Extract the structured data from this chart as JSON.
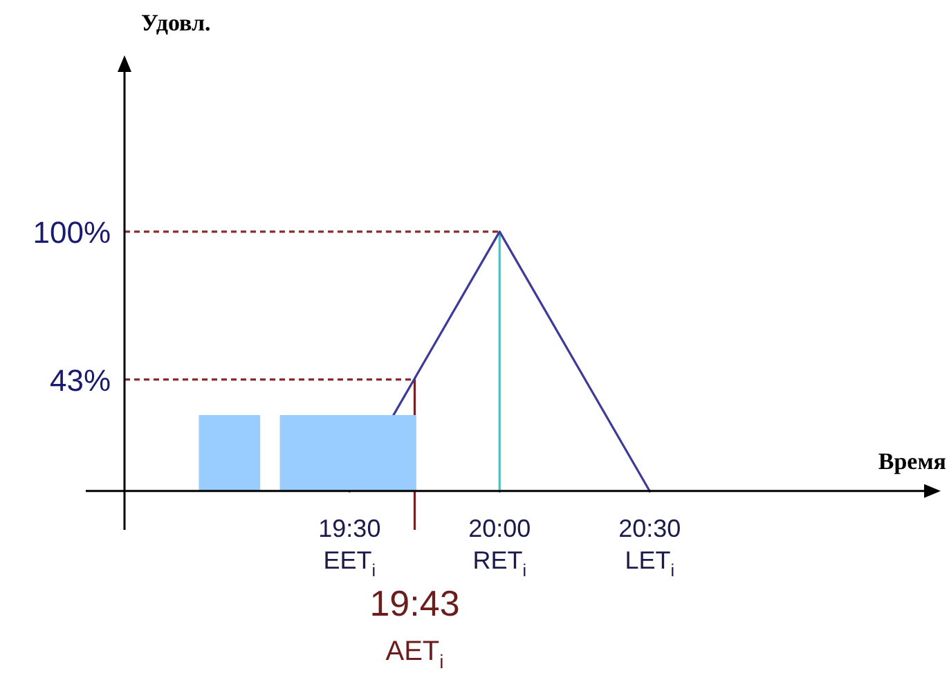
{
  "chart_data": {
    "type": "line",
    "xlabel": "Время",
    "ylabel": "Удовл.",
    "xlim": [
      18.75,
      21.47
    ],
    "ylim": [
      -15,
      168
    ],
    "xticks": [
      {
        "value": 19.5,
        "label": "19:30"
      },
      {
        "value": 20,
        "label": "20:00"
      },
      {
        "value": 20.5,
        "label": "20:30"
      }
    ],
    "yticks": [
      {
        "value": 43,
        "label": "43%"
      },
      {
        "value": 100,
        "label": "100%"
      }
    ],
    "grid": false,
    "legend": false,
    "marker": "none",
    "series": [
      {
        "type": "area",
        "color": "#99ccff",
        "x": [
          19.0,
          19.0,
          19.2,
          19.2,
          19.27,
          19.27,
          19.72,
          19.72
        ],
        "values": [
          0,
          29,
          29,
          0,
          0,
          29,
          29,
          0
        ]
      },
      {
        "type": "line",
        "color": "#3d3a99",
        "x": [
          19.5,
          20,
          20.5
        ],
        "values": [
          0,
          100,
          0
        ]
      },
      {
        "type": "line",
        "color": "#8b2a2a",
        "line_style": "dashed",
        "x": [
          18.75,
          20
        ],
        "values": [
          100,
          100
        ]
      },
      {
        "type": "line",
        "color": "#8b2a2a",
        "line_style": "dashed",
        "x": [
          18.75,
          19.717
        ],
        "values": [
          43,
          43
        ]
      },
      {
        "type": "line",
        "color": "#33cccc",
        "x": [
          20,
          20
        ],
        "values": [
          0,
          100
        ]
      },
      {
        "type": "line",
        "color": "#7a1f1f",
        "x": [
          19.717,
          19.717
        ],
        "values": [
          43,
          -15
        ]
      }
    ],
    "annotations": [
      {
        "text": "EET$_{i}$",
        "x": 19.5,
        "y": 0
      },
      {
        "text": "RET$_{i}$",
        "x": 20,
        "y": 0
      },
      {
        "text": "LET$_{i}$",
        "x": 20.5,
        "y": 0
      },
      {
        "text": "19:43\nAET$_{i}$",
        "x": 19.717,
        "y": -15
      }
    ]
  }
}
